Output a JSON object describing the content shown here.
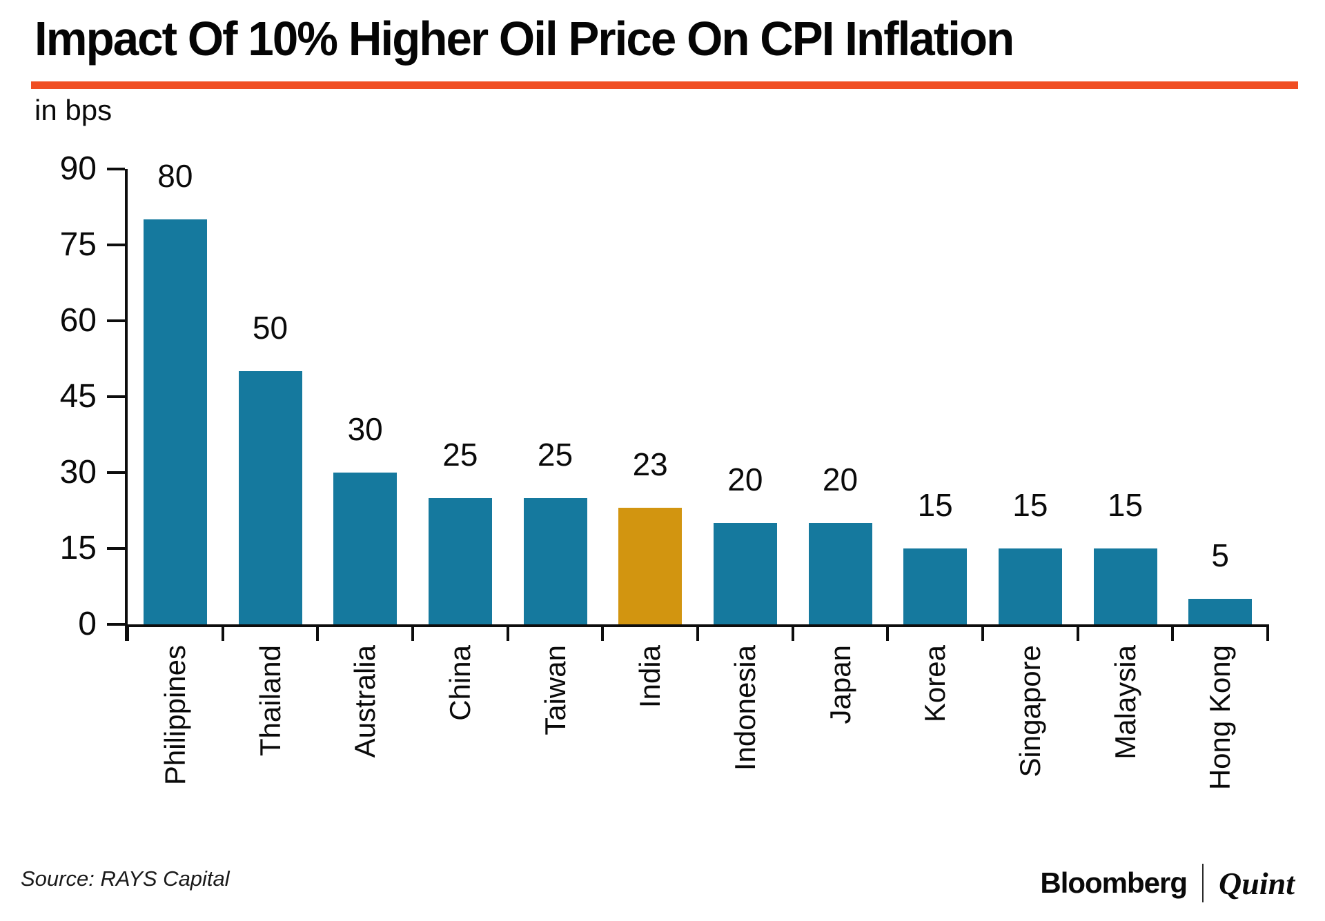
{
  "title": "Impact Of 10% Higher Oil Price On CPI Inflation",
  "unit_label": "in bps",
  "source": "Source: RAYS Capital",
  "branding": {
    "primary": "Bloomberg",
    "secondary": "Quint"
  },
  "colors": {
    "bar": "#15799E",
    "highlight": "#D29510",
    "accent_rule": "#F04E23",
    "axis": "#0d0d0d",
    "text": "#0a0a0a"
  },
  "chart_data": {
    "type": "bar",
    "title": "Impact Of 10% Higher Oil Price On CPI Inflation",
    "ylabel": "in bps",
    "xlabel": "",
    "categories": [
      "Philippines",
      "Thailand",
      "Australia",
      "China",
      "Taiwan",
      "India",
      "Indonesia",
      "Japan",
      "Korea",
      "Singapore",
      "Malaysia",
      "Hong Kong"
    ],
    "values": [
      80,
      50,
      30,
      25,
      25,
      23,
      20,
      20,
      15,
      15,
      15,
      5
    ],
    "highlight_category": "India",
    "ylim": [
      0,
      90
    ],
    "yticks": [
      0,
      15,
      30,
      45,
      60,
      75,
      90
    ],
    "grid": false,
    "legend": false,
    "data_labels": true,
    "bar_orientation": "vertical",
    "category_label_rotation": -90
  }
}
